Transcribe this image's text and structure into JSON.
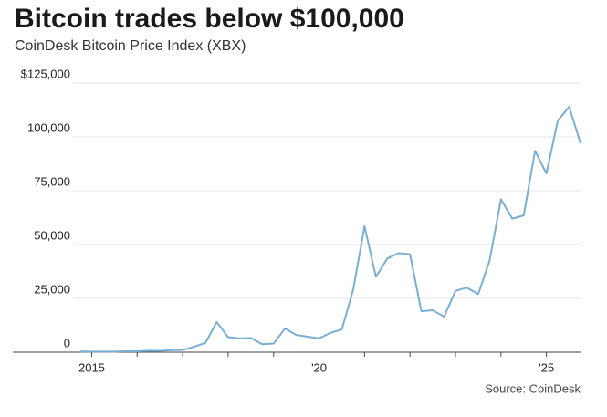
{
  "chart_data": {
    "type": "line",
    "title": "Bitcoin trades below $100,000",
    "subtitle": "CoinDesk Bitcoin Price Index (XBX)",
    "source": "Source: CoinDesk",
    "x": [
      2014.75,
      2015.0,
      2015.25,
      2015.5,
      2015.75,
      2016.0,
      2016.25,
      2016.5,
      2016.75,
      2017.0,
      2017.25,
      2017.5,
      2017.75,
      2018.0,
      2018.25,
      2018.5,
      2018.75,
      2019.0,
      2019.25,
      2019.5,
      2019.75,
      2020.0,
      2020.25,
      2020.5,
      2020.75,
      2021.0,
      2021.25,
      2021.5,
      2021.75,
      2022.0,
      2022.25,
      2022.5,
      2022.75,
      2023.0,
      2023.25,
      2023.5,
      2023.75,
      2024.0,
      2024.25,
      2024.5,
      2024.75,
      2025.0,
      2025.25,
      2025.5,
      2025.75
    ],
    "series": [
      {
        "name": "XBX",
        "color": "#7aaed3",
        "values": [
          350,
          250,
          240,
          280,
          420,
          430,
          670,
          610,
          960,
          1000,
          2500,
          4300,
          14000,
          7000,
          6400,
          6600,
          3700,
          4000,
          11000,
          8000,
          7200,
          6400,
          9000,
          10500,
          29000,
          58500,
          35000,
          43500,
          46000,
          45500,
          19000,
          19500,
          16500,
          28500,
          30000,
          27000,
          42500,
          71000,
          62000,
          63500,
          93500,
          83000,
          107500,
          114000,
          97000
        ]
      }
    ],
    "xlim": [
      2014.75,
      2025.75
    ],
    "xticks": [
      {
        "value": 2015,
        "label": "2015"
      },
      {
        "value": 2020,
        "label": "'20"
      },
      {
        "value": 2025,
        "label": "'25"
      }
    ],
    "xminor_ticks": [
      2015,
      2016,
      2017,
      2018,
      2019,
      2020,
      2021,
      2022,
      2023,
      2024,
      2025
    ],
    "ylim": [
      0,
      125000
    ],
    "yticks": [
      0,
      {
        "value": 25000,
        "label": "25,000"
      },
      {
        "value": 50000,
        "label": "50,000"
      },
      {
        "value": 75000,
        "label": "75,000"
      },
      {
        "value": 100000,
        "label": "100,000"
      },
      {
        "value": 125000,
        "label": "$125,000"
      }
    ],
    "grid": true
  }
}
